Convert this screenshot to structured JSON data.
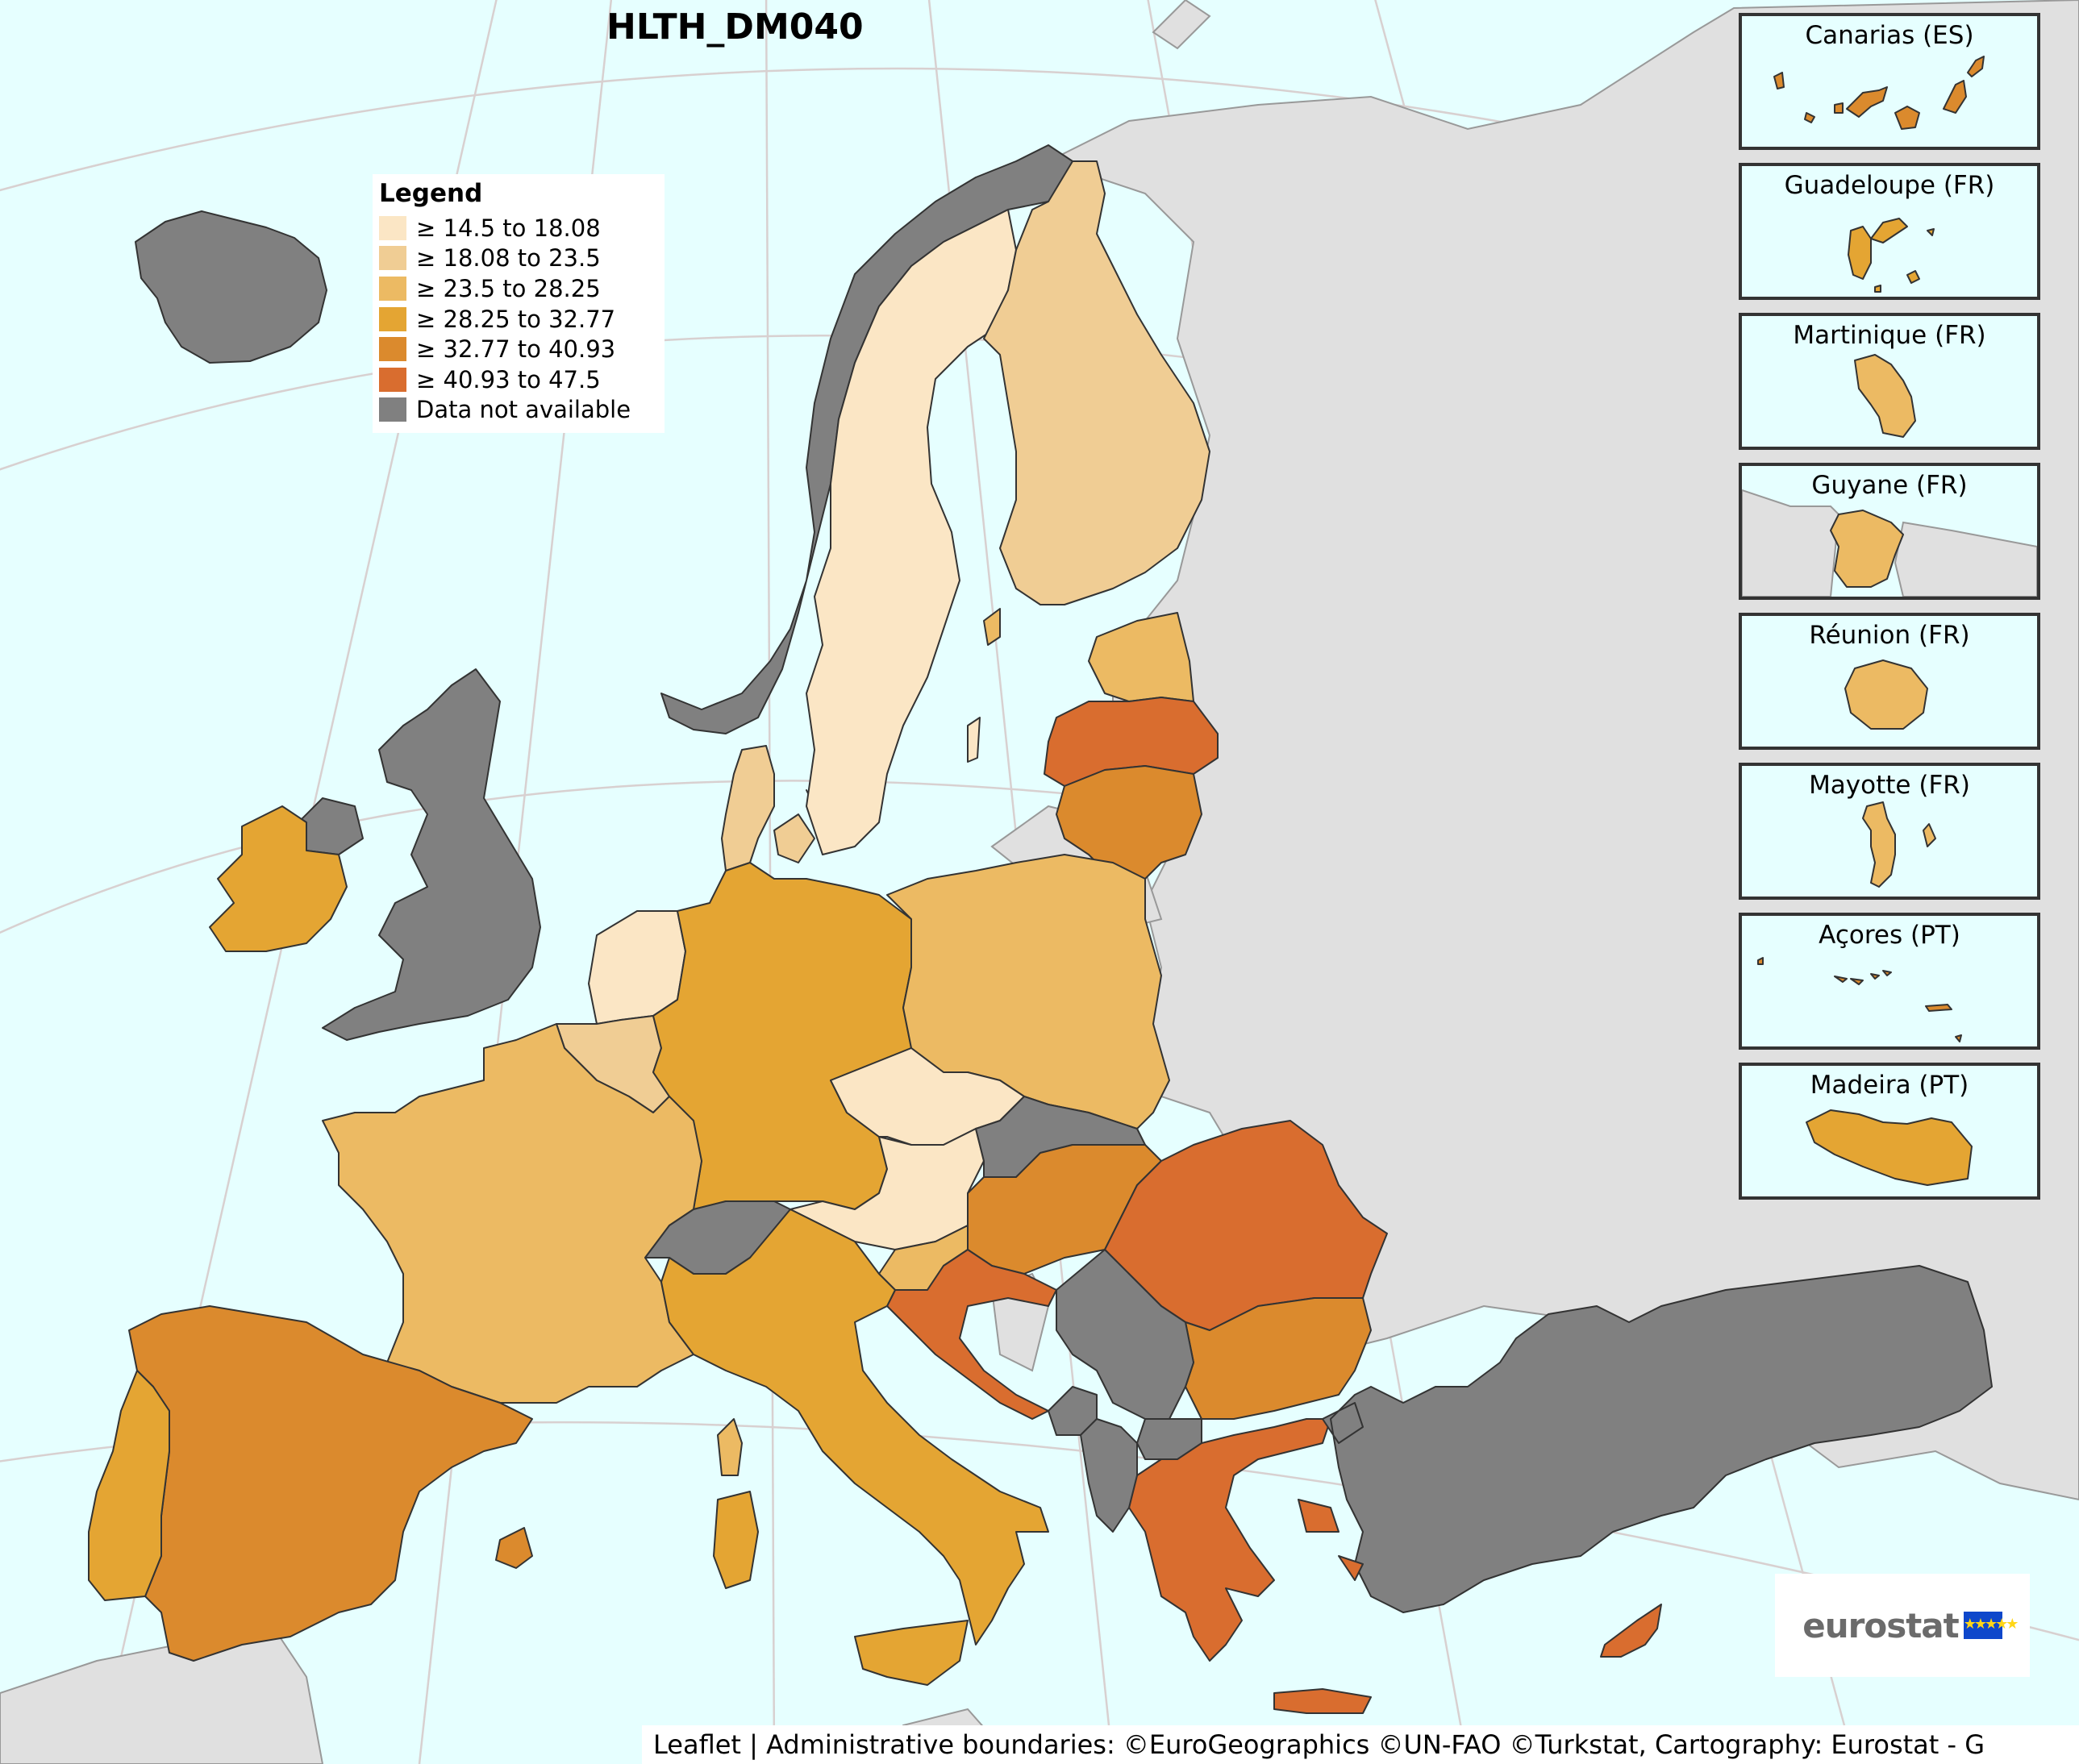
{
  "title": "HLTH_DM040",
  "legend": {
    "title": "Legend",
    "classes": [
      {
        "label": "≥ 14.5 to 18.08",
        "color": "#fbe6c5"
      },
      {
        "label": "≥ 18.08 to 23.5",
        "color": "#f0cd94"
      },
      {
        "label": "≥ 23.5 to 28.25",
        "color": "#ecba63"
      },
      {
        "label": "≥ 28.25 to 32.77",
        "color": "#e4a533"
      },
      {
        "label": "≥ 32.77 to 40.93",
        "color": "#db8a2d"
      },
      {
        "label": "≥ 40.93 to 47.5",
        "color": "#d96d2f"
      },
      {
        "label": "Data not available",
        "color": "#808080"
      }
    ]
  },
  "map": {
    "background_sea": "#e6ffff",
    "non_eu_land": "#e0e0e0",
    "regions": [
      {
        "name": "Iceland",
        "class": 6
      },
      {
        "name": "Norway",
        "class": 6
      },
      {
        "name": "United Kingdom",
        "class": 6
      },
      {
        "name": "Northern Ireland",
        "class": 6
      },
      {
        "name": "Ireland",
        "class": 3
      },
      {
        "name": "Sweden",
        "class": 0
      },
      {
        "name": "Finland",
        "class": 1
      },
      {
        "name": "Estonia",
        "class": 2
      },
      {
        "name": "Latvia",
        "class": 5
      },
      {
        "name": "Lithuania",
        "class": 4
      },
      {
        "name": "Denmark",
        "class": 1
      },
      {
        "name": "Netherlands",
        "class": 0
      },
      {
        "name": "Belgium",
        "class": 1
      },
      {
        "name": "Germany",
        "class": 3
      },
      {
        "name": "Poland",
        "class": 2
      },
      {
        "name": "Czechia",
        "class": 0
      },
      {
        "name": "Austria",
        "class": 0
      },
      {
        "name": "Slovakia",
        "class": 6
      },
      {
        "name": "Hungary",
        "class": 4
      },
      {
        "name": "Slovenia",
        "class": 2
      },
      {
        "name": "Croatia",
        "class": 5
      },
      {
        "name": "Romania",
        "class": 5
      },
      {
        "name": "Bulgaria",
        "class": 4
      },
      {
        "name": "Greece",
        "class": 5
      },
      {
        "name": "Cyprus",
        "class": 5
      },
      {
        "name": "France",
        "class": 2
      },
      {
        "name": "Switzerland",
        "class": 6
      },
      {
        "name": "Italy",
        "class": 3
      },
      {
        "name": "Spain",
        "class": 4
      },
      {
        "name": "Portugal",
        "class": 3
      },
      {
        "name": "Serbia",
        "class": 6
      },
      {
        "name": "Montenegro",
        "class": 6
      },
      {
        "name": "North Macedonia",
        "class": 6
      },
      {
        "name": "Albania",
        "class": 6
      },
      {
        "name": "Turkey",
        "class": 6
      }
    ]
  },
  "insets": [
    {
      "label": "Canarias (ES)",
      "class": 4
    },
    {
      "label": "Guadeloupe (FR)",
      "class": 3
    },
    {
      "label": "Martinique (FR)",
      "class": 2
    },
    {
      "label": "Guyane (FR)",
      "class": 2
    },
    {
      "label": "Réunion (FR)",
      "class": 2
    },
    {
      "label": "Mayotte (FR)",
      "class": 2
    },
    {
      "label": "Açores (PT)",
      "class": 4
    },
    {
      "label": "Madeira (PT)",
      "class": 3
    }
  ],
  "logo": {
    "text": "eurostat",
    "flag_icon": "eu-flag-icon"
  },
  "attribution": "Leaflet | Administrative boundaries: ©EuroGeographics ©UN-FAO ©Turkstat, Cartography: Eurostat - G"
}
